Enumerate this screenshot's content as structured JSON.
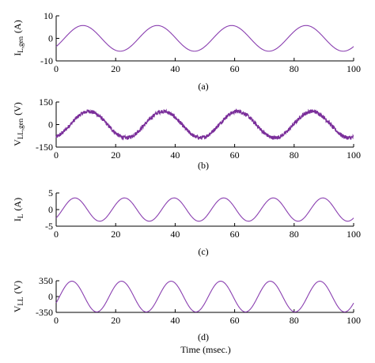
{
  "figure": {
    "x_axis_label": "Time (msec.)"
  },
  "chart_data": [
    {
      "type": "line",
      "panel": "(a)",
      "ylabel_main": "I",
      "ylabel_sub": "L,gen",
      "ylabel_unit": "(A)",
      "xlim": [
        0,
        100
      ],
      "ylim": [
        -10,
        10
      ],
      "xticks": [
        0,
        20,
        40,
        60,
        80,
        100
      ],
      "yticks": [
        10,
        0,
        -10
      ],
      "ytick_labels": [
        "10",
        "0",
        "-10"
      ],
      "series": [
        {
          "signal": "sine",
          "amplitude": 5.7,
          "period_ms": 25,
          "peak_time_ms": 9,
          "noise": 0,
          "color": "#8a3fb0"
        }
      ]
    },
    {
      "type": "line",
      "panel": "(b)",
      "ylabel_main": "V",
      "ylabel_sub": "LL,gen",
      "ylabel_unit": "(V)",
      "xlim": [
        0,
        100
      ],
      "ylim": [
        -150,
        150
      ],
      "xticks": [
        0,
        20,
        40,
        60,
        80,
        100
      ],
      "yticks": [
        150,
        0,
        -150
      ],
      "ytick_labels": [
        "150",
        "0",
        "-150"
      ],
      "series": [
        {
          "signal": "sine",
          "amplitude": 88,
          "period_ms": 25,
          "peak_time_ms": 11,
          "noise": 13,
          "color": "#7a2e9a"
        }
      ]
    },
    {
      "type": "line",
      "panel": "(c)",
      "ylabel_main": "I",
      "ylabel_sub": "L",
      "ylabel_unit": "(A)",
      "xlim": [
        0,
        100
      ],
      "ylim": [
        -5,
        5
      ],
      "xticks": [
        0,
        20,
        40,
        60,
        80,
        100
      ],
      "yticks": [
        5,
        0,
        -5
      ],
      "ytick_labels": [
        "5",
        "0",
        "-5"
      ],
      "series": [
        {
          "signal": "sine",
          "amplitude": 3.5,
          "period_ms": 16.67,
          "peak_time_ms": 6.3,
          "noise": 0,
          "color": "#8a3fb0"
        }
      ]
    },
    {
      "type": "line",
      "panel": "(d)",
      "ylabel_main": "V",
      "ylabel_sub": "LL",
      "ylabel_unit": "(V)",
      "xlim": [
        0,
        100
      ],
      "ylim": [
        -350,
        350
      ],
      "xticks": [
        0,
        20,
        40,
        60,
        80,
        100
      ],
      "yticks": [
        350,
        0,
        -350
      ],
      "ytick_labels": [
        "350",
        "0",
        "-350"
      ],
      "series": [
        {
          "signal": "sine",
          "amplitude": 340,
          "period_ms": 16.67,
          "peak_time_ms": 5.3,
          "noise": 0,
          "color": "#8a3fb0"
        }
      ]
    }
  ]
}
